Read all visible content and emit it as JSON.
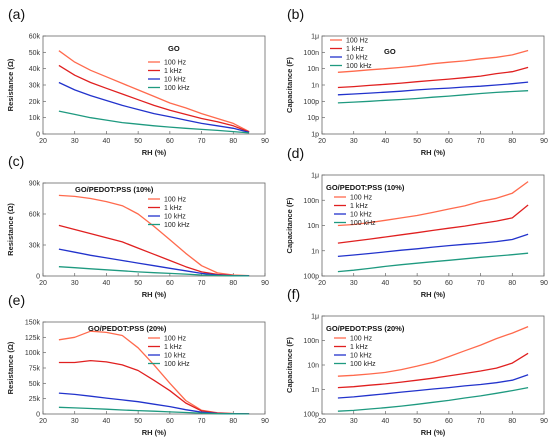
{
  "colors": {
    "100 Hz": "#ff6a4d",
    "1 kHz": "#e02020",
    "10 kHz": "#2233cc",
    "100 kHz": "#1f9a80",
    "axis": "#666666"
  },
  "chart_data": [
    {
      "panel": "(a)",
      "title": "GO",
      "type": "line",
      "xlabel": "RH (%)",
      "ylabel": "Resistance (Ω)",
      "xlim": [
        20,
        90
      ],
      "ylim": [
        0,
        60000
      ],
      "xticks": [
        20,
        30,
        40,
        50,
        60,
        70,
        80,
        90
      ],
      "xtick_labels": [
        "20",
        "30",
        "40",
        "50",
        "60",
        "70",
        "80",
        "90"
      ],
      "yticks": [
        0,
        10000,
        20000,
        30000,
        40000,
        50000,
        60000
      ],
      "ytick_labels": [
        "0",
        "10k",
        "20k",
        "30k",
        "40k",
        "50k",
        "60k"
      ],
      "yscale": "linear",
      "legend_position": "top-center",
      "series": [
        {
          "name": "100 Hz",
          "x": [
            25,
            30,
            35,
            40,
            45,
            50,
            55,
            60,
            65,
            70,
            75,
            80,
            85
          ],
          "y": [
            51000,
            44000,
            39000,
            35000,
            31000,
            27000,
            23000,
            19000,
            16000,
            12500,
            9500,
            6500,
            1500
          ]
        },
        {
          "name": "1 kHz",
          "x": [
            25,
            30,
            35,
            40,
            45,
            50,
            55,
            60,
            65,
            70,
            75,
            80,
            85
          ],
          "y": [
            42000,
            36000,
            31500,
            28000,
            24500,
            21000,
            17500,
            14500,
            12000,
            9500,
            7500,
            5000,
            1200
          ]
        },
        {
          "name": "10 kHz",
          "x": [
            25,
            30,
            35,
            40,
            45,
            50,
            55,
            60,
            65,
            70,
            75,
            80,
            85
          ],
          "y": [
            31500,
            27000,
            23500,
            20500,
            17500,
            15000,
            12500,
            10500,
            8500,
            6500,
            5000,
            3500,
            1000
          ]
        },
        {
          "name": "100 kHz",
          "x": [
            25,
            30,
            35,
            40,
            45,
            50,
            55,
            60,
            65,
            70,
            75,
            80,
            85
          ],
          "y": [
            14000,
            12000,
            10000,
            8500,
            7000,
            6000,
            5000,
            4200,
            3500,
            2800,
            2200,
            1500,
            700
          ]
        }
      ]
    },
    {
      "panel": "(b)",
      "title": "GO",
      "type": "line",
      "xlabel": "RH (%)",
      "ylabel": "Capacitance (F)",
      "xlim": [
        20,
        90
      ],
      "ylim": [
        1e-12,
        1e-06
      ],
      "xticks": [
        20,
        30,
        40,
        50,
        60,
        70,
        80,
        90
      ],
      "xtick_labels": [
        "20",
        "30",
        "40",
        "50",
        "60",
        "70",
        "80",
        "90"
      ],
      "yticks": [
        1e-12,
        1e-11,
        1e-10,
        1e-09,
        1e-08,
        1e-07,
        1e-06
      ],
      "ytick_labels": [
        "1p",
        "10p",
        "100p",
        "1n",
        "10n",
        "100n",
        "1μ"
      ],
      "yscale": "log",
      "legend_position": "top-left",
      "series": [
        {
          "name": "100 Hz",
          "x": [
            25,
            30,
            35,
            40,
            45,
            50,
            55,
            60,
            65,
            70,
            75,
            80,
            85
          ],
          "y": [
            6e-09,
            7e-09,
            8.5e-09,
            1e-08,
            1.2e-08,
            1.5e-08,
            2e-08,
            2.5e-08,
            3e-08,
            4e-08,
            5e-08,
            7e-08,
            1.3e-07
          ]
        },
        {
          "name": "1 kHz",
          "x": [
            25,
            30,
            35,
            40,
            45,
            50,
            55,
            60,
            65,
            70,
            75,
            80,
            85
          ],
          "y": [
            7e-10,
            8e-10,
            9.5e-10,
            1.1e-09,
            1.3e-09,
            1.6e-09,
            1.9e-09,
            2.3e-09,
            2.8e-09,
            3.5e-09,
            5e-09,
            6.5e-09,
            1.2e-08
          ]
        },
        {
          "name": "10 kHz",
          "x": [
            25,
            30,
            35,
            40,
            45,
            50,
            55,
            60,
            65,
            70,
            75,
            80,
            85
          ],
          "y": [
            2.5e-10,
            2.8e-10,
            3.2e-10,
            3.6e-10,
            4.2e-10,
            5e-10,
            5.8e-10,
            6.5e-10,
            7.5e-10,
            8.5e-10,
            1e-09,
            1.2e-09,
            1.5e-09
          ]
        },
        {
          "name": "100 kHz",
          "x": [
            25,
            30,
            35,
            40,
            45,
            50,
            55,
            60,
            65,
            70,
            75,
            80,
            85
          ],
          "y": [
            8e-11,
            9e-11,
            1e-10,
            1.15e-10,
            1.3e-10,
            1.5e-10,
            1.8e-10,
            2.1e-10,
            2.5e-10,
            3e-10,
            3.5e-10,
            4e-10,
            4.5e-10
          ]
        }
      ]
    },
    {
      "panel": "(c)",
      "title": "GO/PEDOT:PSS (10%)",
      "type": "line",
      "xlabel": "RH (%)",
      "ylabel": "Resistance (Ω)",
      "xlim": [
        20,
        90
      ],
      "ylim": [
        0,
        90000
      ],
      "xticks": [
        20,
        30,
        40,
        50,
        60,
        70,
        80,
        90
      ],
      "xtick_labels": [
        "20",
        "30",
        "40",
        "50",
        "60",
        "70",
        "80",
        "90"
      ],
      "yticks": [
        0,
        30000,
        60000,
        90000
      ],
      "ytick_labels": [
        "0",
        "30k",
        "60k",
        "90k"
      ],
      "yscale": "linear",
      "legend_position": "top-center",
      "series": [
        {
          "name": "100 Hz",
          "x": [
            25,
            30,
            35,
            40,
            45,
            50,
            55,
            60,
            65,
            70,
            75,
            80,
            85
          ],
          "y": [
            78000,
            77000,
            75000,
            72000,
            68000,
            60000,
            48000,
            35000,
            22000,
            10000,
            3000,
            1000,
            300
          ]
        },
        {
          "name": "1 kHz",
          "x": [
            25,
            30,
            35,
            40,
            45,
            50,
            55,
            60,
            65,
            70,
            75,
            80,
            85
          ],
          "y": [
            49000,
            45000,
            41000,
            37000,
            33000,
            27000,
            21000,
            15000,
            9000,
            4000,
            1500,
            500,
            200
          ]
        },
        {
          "name": "10 kHz",
          "x": [
            25,
            30,
            35,
            40,
            45,
            50,
            55,
            60,
            65,
            70,
            75,
            80,
            85
          ],
          "y": [
            26000,
            23000,
            20000,
            17500,
            15000,
            12500,
            10000,
            7500,
            5000,
            2500,
            1000,
            400,
            150
          ]
        },
        {
          "name": "100 kHz",
          "x": [
            25,
            30,
            35,
            40,
            45,
            50,
            55,
            60,
            65,
            70,
            75,
            80,
            85
          ],
          "y": [
            9000,
            8000,
            7000,
            6000,
            5000,
            4000,
            3200,
            2500,
            1800,
            1000,
            500,
            200,
            100
          ]
        }
      ]
    },
    {
      "panel": "(d)",
      "title": "GO/PEDOT:PSS (10%)",
      "type": "line",
      "xlabel": "RH (%)",
      "ylabel": "Capacitance (F)",
      "xlim": [
        20,
        90
      ],
      "ylim": [
        1e-10,
        1e-06
      ],
      "xticks": [
        20,
        30,
        40,
        50,
        60,
        70,
        80,
        90
      ],
      "xtick_labels": [
        "20",
        "30",
        "40",
        "50",
        "60",
        "70",
        "80",
        "90"
      ],
      "yticks": [
        1e-10,
        1e-09,
        1e-08,
        1e-07,
        1e-06
      ],
      "ytick_labels": [
        "100p",
        "1n",
        "10n",
        "100n",
        "1μ"
      ],
      "yscale": "log",
      "legend_position": "top-left",
      "series": [
        {
          "name": "100 Hz",
          "x": [
            25,
            30,
            35,
            40,
            45,
            50,
            55,
            60,
            65,
            70,
            75,
            80,
            85
          ],
          "y": [
            1e-08,
            1.1e-08,
            1.3e-08,
            1.6e-08,
            2e-08,
            2.5e-08,
            3.3e-08,
            4.5e-08,
            6e-08,
            9e-08,
            1.2e-07,
            1.9e-07,
            5.5e-07
          ]
        },
        {
          "name": "1 kHz",
          "x": [
            25,
            30,
            35,
            40,
            45,
            50,
            55,
            60,
            65,
            70,
            75,
            80,
            85
          ],
          "y": [
            2e-09,
            2.4e-09,
            2.9e-09,
            3.5e-09,
            4.3e-09,
            5.2e-09,
            6.4e-09,
            7.8e-09,
            9.5e-09,
            1.2e-08,
            1.5e-08,
            2e-08,
            6.5e-08
          ]
        },
        {
          "name": "10 kHz",
          "x": [
            25,
            30,
            35,
            40,
            45,
            50,
            55,
            60,
            65,
            70,
            75,
            80,
            85
          ],
          "y": [
            6e-10,
            6.8e-10,
            7.8e-10,
            9e-10,
            1.05e-09,
            1.2e-09,
            1.4e-09,
            1.6e-09,
            1.8e-09,
            2e-09,
            2.3e-09,
            2.8e-09,
            4.5e-09
          ]
        },
        {
          "name": "100 kHz",
          "x": [
            25,
            30,
            35,
            40,
            45,
            50,
            55,
            60,
            65,
            70,
            75,
            80,
            85
          ],
          "y": [
            1.5e-10,
            1.7e-10,
            2e-10,
            2.4e-10,
            2.8e-10,
            3.2e-10,
            3.7e-10,
            4.2e-10,
            4.8e-10,
            5.5e-10,
            6.2e-10,
            7e-10,
            8e-10
          ]
        }
      ]
    },
    {
      "panel": "(e)",
      "title": "GO/PEDOT:PSS (20%)",
      "type": "line",
      "xlabel": "RH (%)",
      "ylabel": "Resistance (Ω)",
      "xlim": [
        20,
        90
      ],
      "ylim": [
        0,
        150000
      ],
      "xticks": [
        20,
        30,
        40,
        50,
        60,
        70,
        80,
        90
      ],
      "xtick_labels": [
        "20",
        "30",
        "40",
        "50",
        "60",
        "70",
        "80",
        "90"
      ],
      "yticks": [
        0,
        25000,
        50000,
        75000,
        100000,
        125000,
        150000
      ],
      "ytick_labels": [
        "0",
        "25k",
        "50k",
        "75k",
        "100k",
        "125k",
        "150k"
      ],
      "yscale": "linear",
      "legend_position": "top-center",
      "series": [
        {
          "name": "100 Hz",
          "x": [
            25,
            30,
            35,
            40,
            45,
            50,
            55,
            60,
            65,
            70,
            75,
            80,
            85
          ],
          "y": [
            121000,
            125000,
            135000,
            133000,
            128000,
            108000,
            80000,
            50000,
            22000,
            6000,
            2000,
            800,
            300
          ]
        },
        {
          "name": "1 kHz",
          "x": [
            25,
            30,
            35,
            40,
            45,
            50,
            55,
            60,
            65,
            70,
            75,
            80,
            85
          ],
          "y": [
            84000,
            84000,
            87000,
            85000,
            80000,
            71000,
            55000,
            38000,
            18000,
            5000,
            1500,
            600,
            200
          ]
        },
        {
          "name": "10 kHz",
          "x": [
            25,
            30,
            35,
            40,
            45,
            50,
            55,
            60,
            65,
            70,
            75,
            80,
            85
          ],
          "y": [
            34000,
            32000,
            29000,
            26000,
            23000,
            20000,
            16000,
            12000,
            7000,
            3000,
            1000,
            400,
            150
          ]
        },
        {
          "name": "100 kHz",
          "x": [
            25,
            30,
            35,
            40,
            45,
            50,
            55,
            60,
            65,
            70,
            75,
            80,
            85
          ],
          "y": [
            11000,
            10000,
            9000,
            7800,
            6500,
            5500,
            4500,
            3500,
            2500,
            1500,
            700,
            300,
            100
          ]
        }
      ]
    },
    {
      "panel": "(f)",
      "title": "GO/PEDOT:PSS (20%)",
      "type": "line",
      "xlabel": "RH (%)",
      "ylabel": "Capacitance (F)",
      "xlim": [
        20,
        90
      ],
      "ylim": [
        1e-10,
        1e-06
      ],
      "xticks": [
        20,
        30,
        40,
        50,
        60,
        70,
        80,
        90
      ],
      "xtick_labels": [
        "20",
        "30",
        "40",
        "50",
        "60",
        "70",
        "80",
        "90"
      ],
      "yticks": [
        1e-10,
        1e-09,
        1e-08,
        1e-07,
        1e-06
      ],
      "ytick_labels": [
        "100p",
        "1n",
        "10n",
        "100n",
        "1μ"
      ],
      "yscale": "log",
      "legend_position": "top-left",
      "series": [
        {
          "name": "100 Hz",
          "x": [
            25,
            30,
            35,
            40,
            45,
            50,
            55,
            60,
            65,
            70,
            75,
            80,
            85
          ],
          "y": [
            3.5e-09,
            3.8e-09,
            4.3e-09,
            5e-09,
            6.5e-09,
            9e-09,
            1.3e-08,
            2.2e-08,
            3.8e-08,
            6.5e-08,
            1.2e-07,
            2e-07,
            3.7e-07
          ]
        },
        {
          "name": "1 kHz",
          "x": [
            25,
            30,
            35,
            40,
            45,
            50,
            55,
            60,
            65,
            70,
            75,
            80,
            85
          ],
          "y": [
            1.2e-09,
            1.3e-09,
            1.5e-09,
            1.7e-09,
            2e-09,
            2.4e-09,
            2.9e-09,
            3.6e-09,
            4.5e-09,
            5.7e-09,
            7.5e-09,
            1.2e-08,
            3e-08
          ]
        },
        {
          "name": "10 kHz",
          "x": [
            25,
            30,
            35,
            40,
            45,
            50,
            55,
            60,
            65,
            70,
            75,
            80,
            85
          ],
          "y": [
            4.5e-10,
            5e-10,
            5.8e-10,
            6.7e-10,
            7.8e-10,
            9e-10,
            1.05e-09,
            1.2e-09,
            1.4e-09,
            1.6e-09,
            1.9e-09,
            2.4e-09,
            4e-09
          ]
        },
        {
          "name": "100 kHz",
          "x": [
            25,
            30,
            35,
            40,
            45,
            50,
            55,
            60,
            65,
            70,
            75,
            80,
            85
          ],
          "y": [
            1.3e-10,
            1.4e-10,
            1.6e-10,
            1.8e-10,
            2.1e-10,
            2.5e-10,
            3e-10,
            3.6e-10,
            4.5e-10,
            5.5e-10,
            7e-10,
            9e-10,
            1.2e-09
          ]
        }
      ]
    }
  ]
}
